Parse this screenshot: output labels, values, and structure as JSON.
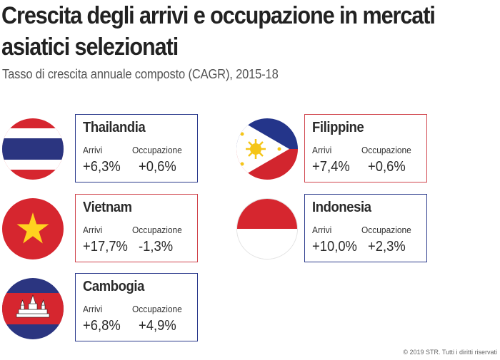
{
  "title_line1": "Crescita degli arrivi e occupazione in mercati",
  "title_line2": "asiatici selezionati",
  "subtitle": "Tasso di crescita annuale composto (CAGR), 2015-18",
  "copyright": "© 2019 STR. Tutti i diritti riservati",
  "colors": {
    "blue_border": "#2b3a8c",
    "red_border": "#d0444c"
  },
  "countries": [
    {
      "name": "Thailandia",
      "arrivals_label": "Arrivi",
      "occupancy_label": "Occupazione",
      "arrivals": "+6,3%",
      "occupancy": "+0,6%",
      "flag": "thailand-flag-icon"
    },
    {
      "name": "Filippine",
      "arrivals_label": "Arrivi",
      "occupancy_label": "Occupazione",
      "arrivals": "+7,4%",
      "occupancy": "+0,6%",
      "flag": "philippines-flag-icon"
    },
    {
      "name": "Vietnam",
      "arrivals_label": "Arrivi",
      "occupancy_label": "Occupazione",
      "arrivals": "+17,7%",
      "occupancy": "-1,3%",
      "flag": "vietnam-flag-icon"
    },
    {
      "name": "Indonesia",
      "arrivals_label": "Arrivi",
      "occupancy_label": "Occupazione",
      "arrivals": "+10,0%",
      "occupancy": "+2,3%",
      "flag": "indonesia-flag-icon"
    },
    {
      "name": "Cambogia",
      "arrivals_label": "Arrivi",
      "occupancy_label": "Occupazione",
      "arrivals": "+6,8%",
      "occupancy": "+4,9%",
      "flag": "cambodia-flag-icon"
    }
  ]
}
